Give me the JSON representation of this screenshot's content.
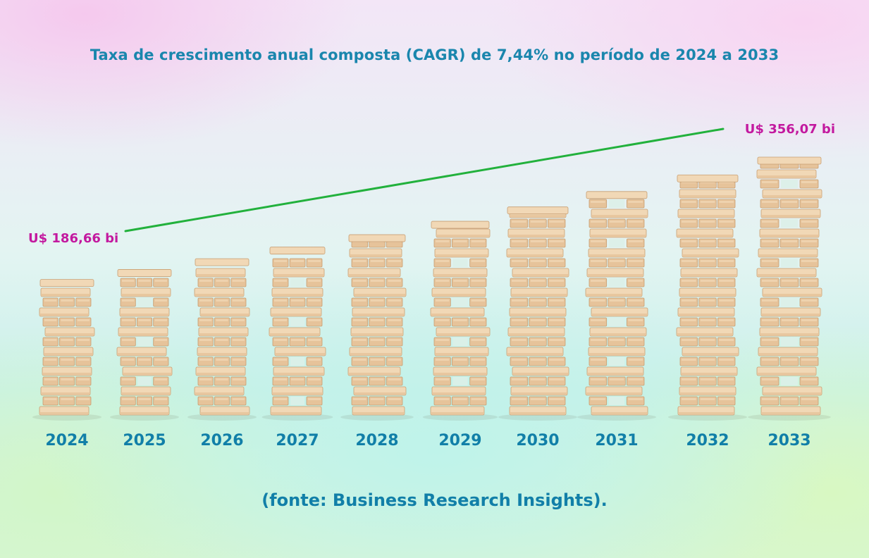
{
  "title": "Taxa de crescimento anual composta (CAGR) de 7,44% no período de 2024 a 2033",
  "source": "(fonte: Business Research Insights).",
  "colors": {
    "title": "#1a86ad",
    "year_labels": "#117fa8",
    "value_labels": "#c3199f",
    "trend_line": "#22b13c",
    "block_light": "#f1d8b6",
    "block_mid": "#e6c39a",
    "block_dark": "#c89e72"
  },
  "chart_data": {
    "type": "bar",
    "categories": [
      "2024",
      "2025",
      "2026",
      "2027",
      "2028",
      "2029",
      "2030",
      "2031",
      "2032",
      "2033"
    ],
    "values": [
      186.66,
      200.55,
      215.47,
      231.5,
      248.72,
      267.22,
      287.1,
      308.46,
      331.41,
      356.07
    ],
    "annotations": [
      {
        "category": "2024",
        "text": "U$ 186,66 bi"
      },
      {
        "category": "2033",
        "text": "U$ 356,07 bi"
      }
    ],
    "title": "Taxa de crescimento anual composta (CAGR) de 7,44% no período de 2024 a 2033",
    "xlabel": "",
    "ylabel": "",
    "grid": false,
    "legend": "none"
  }
}
